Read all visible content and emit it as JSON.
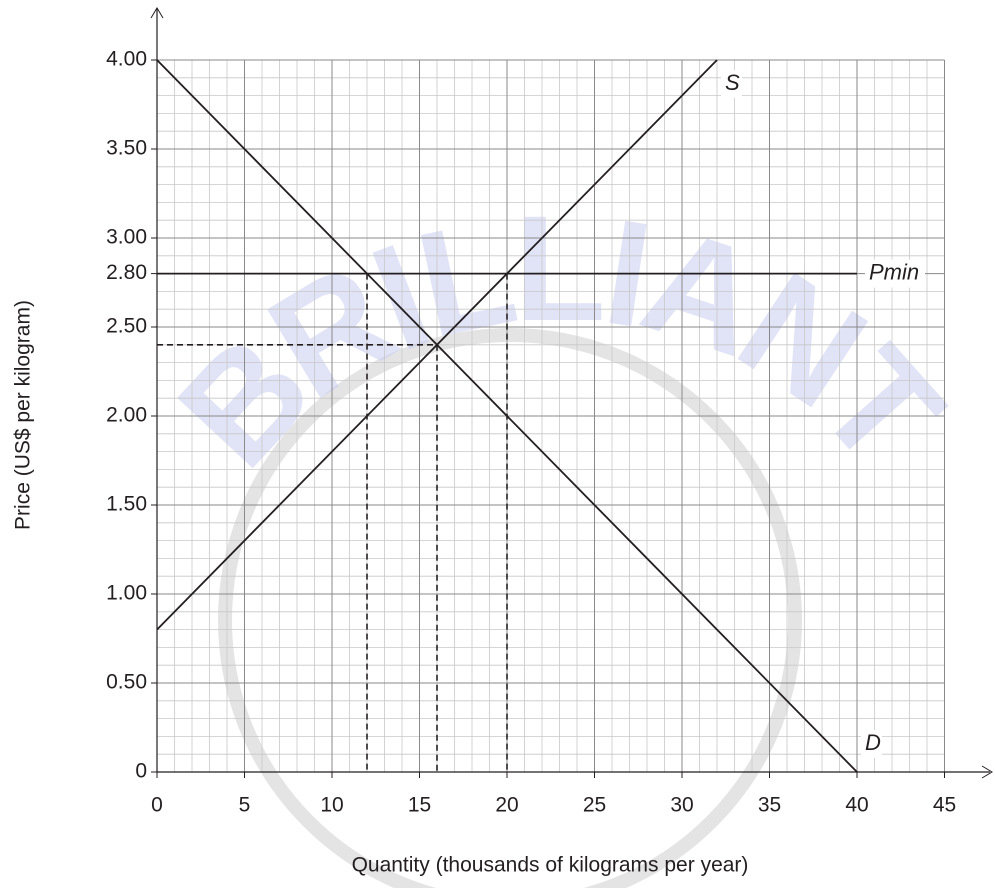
{
  "watermark": "BRILLIANT",
  "chart_data": {
    "type": "line",
    "x_label": "Quantity (thousands of kilograms per year)",
    "y_label": "Price (US$ per kilogram)",
    "xlim": [
      0,
      45
    ],
    "ylim": [
      0,
      4
    ],
    "xticks": [
      0,
      5,
      10,
      15,
      20,
      25,
      30,
      35,
      40,
      45
    ],
    "yticks": [
      0,
      {
        "value": 0.5,
        "label": "0.50"
      },
      {
        "value": 1,
        "label": "1.00"
      },
      {
        "value": 1.5,
        "label": "1.50"
      },
      {
        "value": 2,
        "label": "2.00"
      },
      {
        "value": 2.5,
        "label": "2.50"
      },
      {
        "value": 2.8,
        "label": "2.80"
      },
      {
        "value": 3,
        "label": "3.00"
      },
      {
        "value": 3.5,
        "label": "3.50"
      },
      {
        "value": 4,
        "label": "4.00"
      }
    ],
    "grid": true,
    "series": [
      {
        "name": "S",
        "color": "#231f20",
        "x": [
          0,
          32
        ],
        "values": [
          0.8,
          4
        ]
      },
      {
        "name": "Pmin",
        "color": "#231f20",
        "x": [
          0,
          40
        ],
        "values": [
          2.8,
          2.8
        ]
      },
      {
        "name": "D",
        "color": "#231f20",
        "x": [
          0,
          40
        ],
        "values": [
          4,
          0
        ]
      }
    ],
    "guides": [
      {
        "x": [
          0,
          16
        ],
        "values": [
          2.4,
          2.4
        ]
      },
      {
        "x": [
          12,
          12
        ],
        "values": [
          2.8,
          0
        ]
      },
      {
        "x": [
          16,
          16
        ],
        "values": [
          2.4,
          0
        ]
      },
      {
        "x": [
          20,
          20
        ],
        "values": [
          2.8,
          0
        ]
      }
    ]
  }
}
